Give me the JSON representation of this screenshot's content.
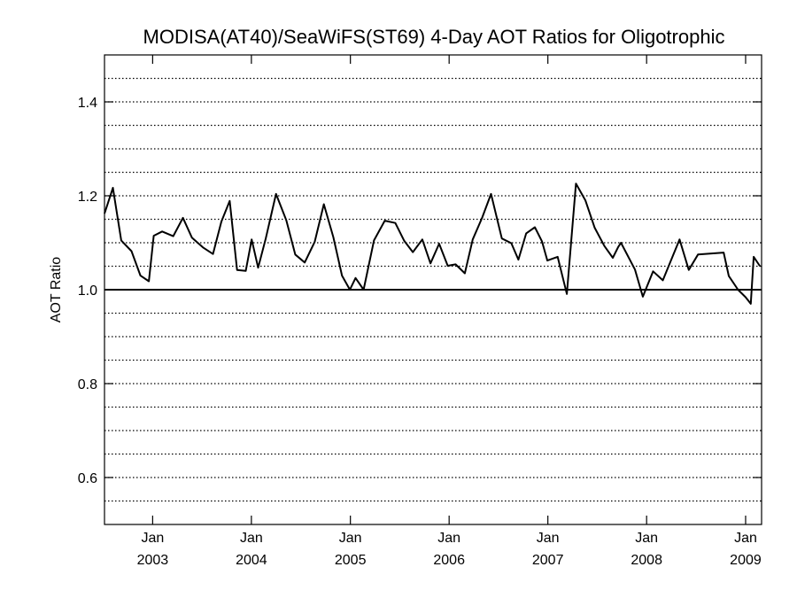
{
  "chart_data": {
    "type": "line",
    "title": "MODISA(AT40)/SeaWiFS(ST69) 4-Day AOT Ratios for Oligotrophic",
    "xlabel": "",
    "ylabel": "AOT Ratio",
    "ylim": [
      0.5,
      1.5
    ],
    "xlim": [
      "2002-07-07",
      "2009-03-01"
    ],
    "yticks": [
      {
        "value": 1.4,
        "label": "1.4"
      },
      {
        "value": 1.2,
        "label": "1.2"
      },
      {
        "value": 1.0,
        "label": "1.0"
      },
      {
        "value": 0.8,
        "label": "0.8"
      },
      {
        "value": 0.6,
        "label": "0.6"
      }
    ],
    "xticks": [
      {
        "date": "2003-01-01",
        "month": "Jan",
        "year": "2003"
      },
      {
        "date": "2004-01-01",
        "month": "Jan",
        "year": "2004"
      },
      {
        "date": "2005-01-01",
        "month": "Jan",
        "year": "2005"
      },
      {
        "date": "2006-01-01",
        "month": "Jan",
        "year": "2006"
      },
      {
        "date": "2007-01-01",
        "month": "Jan",
        "year": "2007"
      },
      {
        "date": "2008-01-01",
        "month": "Jan",
        "year": "2008"
      },
      {
        "date": "2009-01-01",
        "month": "Jan",
        "year": "2009"
      }
    ],
    "grid": "horizontal dotted every 0.05",
    "reference_line": 1.0,
    "colors": {
      "line": "#000000",
      "grid": "#000000",
      "background": "#ffffff"
    },
    "series": [
      {
        "x": [
          "2002-07-07",
          "2002-08-07",
          "2002-09-07",
          "2002-10-15",
          "2002-11-17",
          "2002-12-18",
          "2003-01-05",
          "2003-02-05",
          "2003-03-18",
          "2003-04-23",
          "2003-05-26",
          "2003-07-06",
          "2003-08-12",
          "2003-09-12",
          "2003-10-13",
          "2003-11-09",
          "2003-12-11",
          "2004-01-02",
          "2004-01-26",
          "2004-02-23",
          "2004-04-01",
          "2004-05-09",
          "2004-06-11",
          "2004-07-16",
          "2004-08-22",
          "2004-09-25",
          "2004-10-30",
          "2004-12-01",
          "2004-12-30",
          "2005-01-20",
          "2005-02-19",
          "2005-03-29",
          "2005-05-08",
          "2005-06-16",
          "2005-07-19",
          "2005-08-20",
          "2005-09-24",
          "2005-10-24",
          "2005-11-25",
          "2005-12-27",
          "2006-01-25",
          "2006-02-28",
          "2006-03-29",
          "2006-05-03",
          "2006-06-05",
          "2006-07-15",
          "2006-08-19",
          "2006-09-14",
          "2006-10-13",
          "2006-11-14",
          "2006-12-10",
          "2006-12-30",
          "2007-02-06",
          "2007-03-12",
          "2007-04-15",
          "2007-05-20",
          "2007-06-23",
          "2007-07-29",
          "2007-08-29",
          "2007-09-18",
          "2007-09-28",
          "2007-11-19",
          "2007-12-18",
          "2008-01-25",
          "2008-03-01",
          "2008-05-02",
          "2008-06-05",
          "2008-07-09",
          "2008-10-12",
          "2008-10-31",
          "2008-12-04",
          "2009-01-01",
          "2009-01-20",
          "2009-01-31",
          "2009-02-23"
        ],
        "y": [
          1.162,
          1.217,
          1.105,
          1.082,
          1.03,
          1.018,
          1.115,
          1.124,
          1.114,
          1.153,
          1.111,
          1.09,
          1.076,
          1.145,
          1.189,
          1.042,
          1.04,
          1.107,
          1.047,
          1.109,
          1.204,
          1.148,
          1.075,
          1.058,
          1.102,
          1.182,
          1.112,
          1.03,
          1.0,
          1.025,
          1.0,
          1.105,
          1.147,
          1.142,
          1.104,
          1.08,
          1.107,
          1.056,
          1.098,
          1.051,
          1.054,
          1.035,
          1.107,
          1.153,
          1.204,
          1.109,
          1.099,
          1.064,
          1.12,
          1.133,
          1.103,
          1.062,
          1.07,
          0.991,
          1.226,
          1.19,
          1.132,
          1.093,
          1.068,
          1.091,
          1.1,
          1.043,
          0.985,
          1.039,
          1.02,
          1.107,
          1.042,
          1.075,
          1.079,
          1.029,
          1.0,
          0.984,
          0.97,
          1.07,
          1.05
        ]
      }
    ]
  }
}
